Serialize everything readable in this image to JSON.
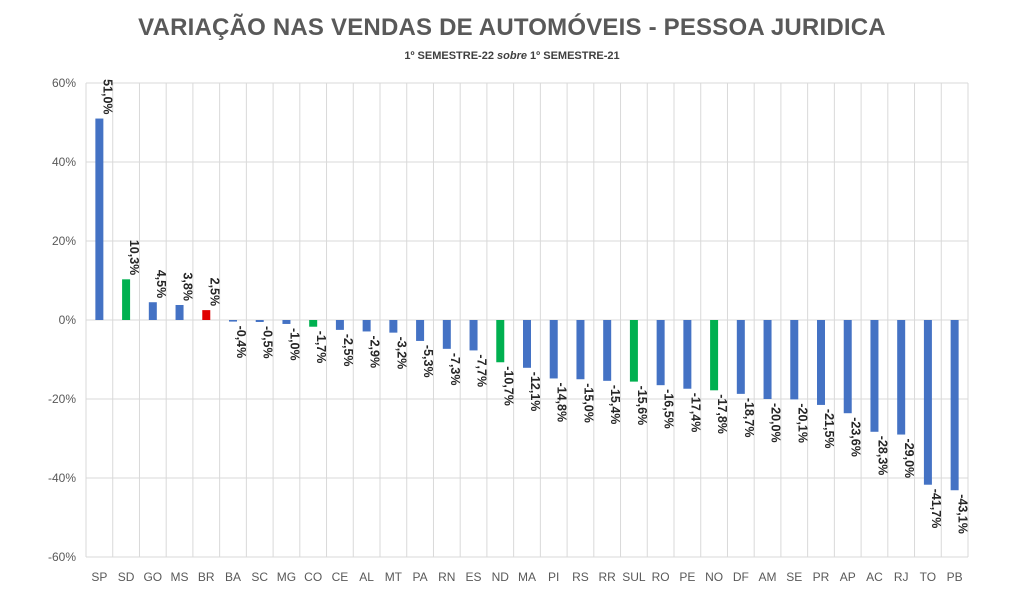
{
  "chart_data": {
    "type": "bar",
    "title": "VARIAÇÃO NAS VENDAS DE AUTOMÓVEIS - PESSOA JURIDICA",
    "subtitle_parts": [
      "1º SEMESTRE-22 ",
      "sobre",
      " 1º SEMESTRE-21"
    ],
    "xlabel": "",
    "ylabel": "",
    "ylim": [
      -60,
      60
    ],
    "ytick_values": [
      60,
      40,
      20,
      0,
      -20,
      -40,
      -60
    ],
    "ytick_labels": [
      "60%",
      "40%",
      "20%",
      "0%",
      "-20%",
      "-40%",
      "-60%"
    ],
    "grid": "vertical and horizontal",
    "categories": [
      "SP",
      "SD",
      "GO",
      "MS",
      "BR",
      "BA",
      "SC",
      "MG",
      "CO",
      "CE",
      "AL",
      "MT",
      "PA",
      "RN",
      "ES",
      "ND",
      "MA",
      "PI",
      "RS",
      "RR",
      "SUL",
      "RO",
      "PE",
      "NO",
      "DF",
      "AM",
      "SE",
      "PR",
      "AP",
      "AC",
      "RJ",
      "TO",
      "PB"
    ],
    "values": [
      51.0,
      10.3,
      4.5,
      3.8,
      2.5,
      -0.4,
      -0.5,
      -1.0,
      -1.7,
      -2.5,
      -2.9,
      -3.2,
      -5.3,
      -7.3,
      -7.7,
      -10.7,
      -12.1,
      -14.8,
      -15.0,
      -15.4,
      -15.6,
      -16.5,
      -17.4,
      -17.8,
      -18.7,
      -20.0,
      -20.1,
      -21.5,
      -23.6,
      -28.3,
      -29.0,
      -41.7,
      -43.1
    ],
    "data_labels": [
      "51,0%",
      "10,3%",
      "4,5%",
      "3,8%",
      "2,5%",
      "-0,4%",
      "-0,5%",
      "-1,0%",
      "-1,7%",
      "-2,5%",
      "-2,9%",
      "-3,2%",
      "-5,3%",
      "-7,3%",
      "-7,7%",
      "-10,7%",
      "-12,1%",
      "-14,8%",
      "-15,0%",
      "-15,4%",
      "-15,6%",
      "-16,5%",
      "-17,4%",
      "-17,8%",
      "-18,7%",
      "-20,0%",
      "-20,1%",
      "-21,5%",
      "-23,6%",
      "-28,3%",
      "-29,0%",
      "-41,7%",
      "-43,1%"
    ],
    "colors": {
      "default": "#4472C4",
      "region": "#00B050",
      "national": "#E00000",
      "grid": "#D9D9D9",
      "axis_text": "#595959",
      "label_text": "#262626"
    },
    "region_categories": [
      "SD",
      "CO",
      "ND",
      "SUL",
      "NO"
    ],
    "national_categories": [
      "BR"
    ]
  }
}
